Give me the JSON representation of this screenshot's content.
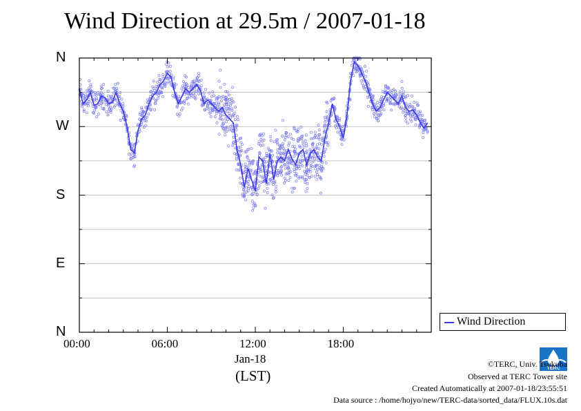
{
  "title": "Wind Direction at 29.5m / 2007-01-18",
  "x_axis": {
    "date_label": "Jan-18",
    "unit_label": "(LST)"
  },
  "legend": {
    "label": "Wind Direction"
  },
  "credits": {
    "copyright": "©TERC, Univ. Tsukuba",
    "observed": "Observed at TERC Tower site",
    "created": "Created Automatically at 2007-01-18/23:55:51",
    "source": "Data source : /home/hojyo/new/TERC-data/sorted_data/FLUX.10s.dat"
  },
  "logo": {
    "text": "TERC"
  },
  "colors": {
    "series": "#3a3ae0",
    "points": "#7a7af0",
    "grid": "#b0b0b0"
  },
  "chart_data": {
    "type": "scatter",
    "title": "Wind Direction at 29.5m / 2007-01-18",
    "xlabel": "(LST)",
    "ylabel": "",
    "x_ticks": [
      "00:00",
      "06:00",
      "12:00",
      "18:00"
    ],
    "y_ticks": [
      "N",
      "W",
      "S",
      "E",
      "N"
    ],
    "y_tick_values": [
      360,
      270,
      180,
      90,
      0
    ],
    "xlim": [
      0,
      24
    ],
    "ylim": [
      0,
      360
    ],
    "grid": true,
    "legend_position": "right",
    "series": [
      {
        "name": "Wind Direction",
        "style": "line+points",
        "x": [
          0.0,
          0.25,
          0.5,
          0.75,
          1.0,
          1.25,
          1.5,
          1.75,
          2.0,
          2.25,
          2.5,
          2.75,
          3.0,
          3.25,
          3.5,
          3.75,
          4.0,
          4.25,
          4.5,
          4.75,
          5.0,
          5.25,
          5.5,
          5.75,
          6.0,
          6.25,
          6.5,
          6.75,
          7.0,
          7.25,
          7.5,
          7.75,
          8.0,
          8.25,
          8.5,
          8.75,
          9.0,
          9.25,
          9.5,
          9.75,
          10.0,
          10.25,
          10.5,
          10.75,
          11.0,
          11.25,
          11.5,
          11.75,
          12.0,
          12.25,
          12.5,
          12.75,
          13.0,
          13.25,
          13.5,
          13.75,
          14.0,
          14.25,
          14.5,
          14.75,
          15.0,
          15.25,
          15.5,
          15.75,
          16.0,
          16.25,
          16.5,
          16.75,
          17.0,
          17.25,
          17.5,
          17.75,
          18.0,
          18.25,
          18.5,
          18.75,
          19.0,
          19.25,
          19.5,
          19.75,
          20.0,
          20.25,
          20.5,
          20.75,
          21.0,
          21.25,
          21.5,
          21.75,
          22.0,
          22.25,
          22.5,
          22.75,
          23.0,
          23.25,
          23.5,
          23.75
        ],
        "y": [
          320,
          300,
          305,
          315,
          298,
          300,
          310,
          308,
          300,
          302,
          315,
          300,
          290,
          270,
          240,
          235,
          265,
          280,
          285,
          300,
          310,
          315,
          325,
          330,
          340,
          335,
          315,
          300,
          310,
          320,
          315,
          320,
          325,
          318,
          300,
          305,
          300,
          295,
          290,
          295,
          285,
          280,
          275,
          240,
          220,
          190,
          215,
          200,
          185,
          230,
          225,
          195,
          235,
          200,
          225,
          230,
          225,
          240,
          228,
          220,
          235,
          240,
          220,
          235,
          240,
          230,
          225,
          255,
          275,
          300,
          280,
          270,
          255,
          285,
          330,
          355,
          350,
          340,
          330,
          315,
          300,
          290,
          295,
          305,
          315,
          310,
          305,
          300,
          310,
          295,
          290,
          292,
          285,
          275,
          268,
          275
        ]
      }
    ]
  }
}
